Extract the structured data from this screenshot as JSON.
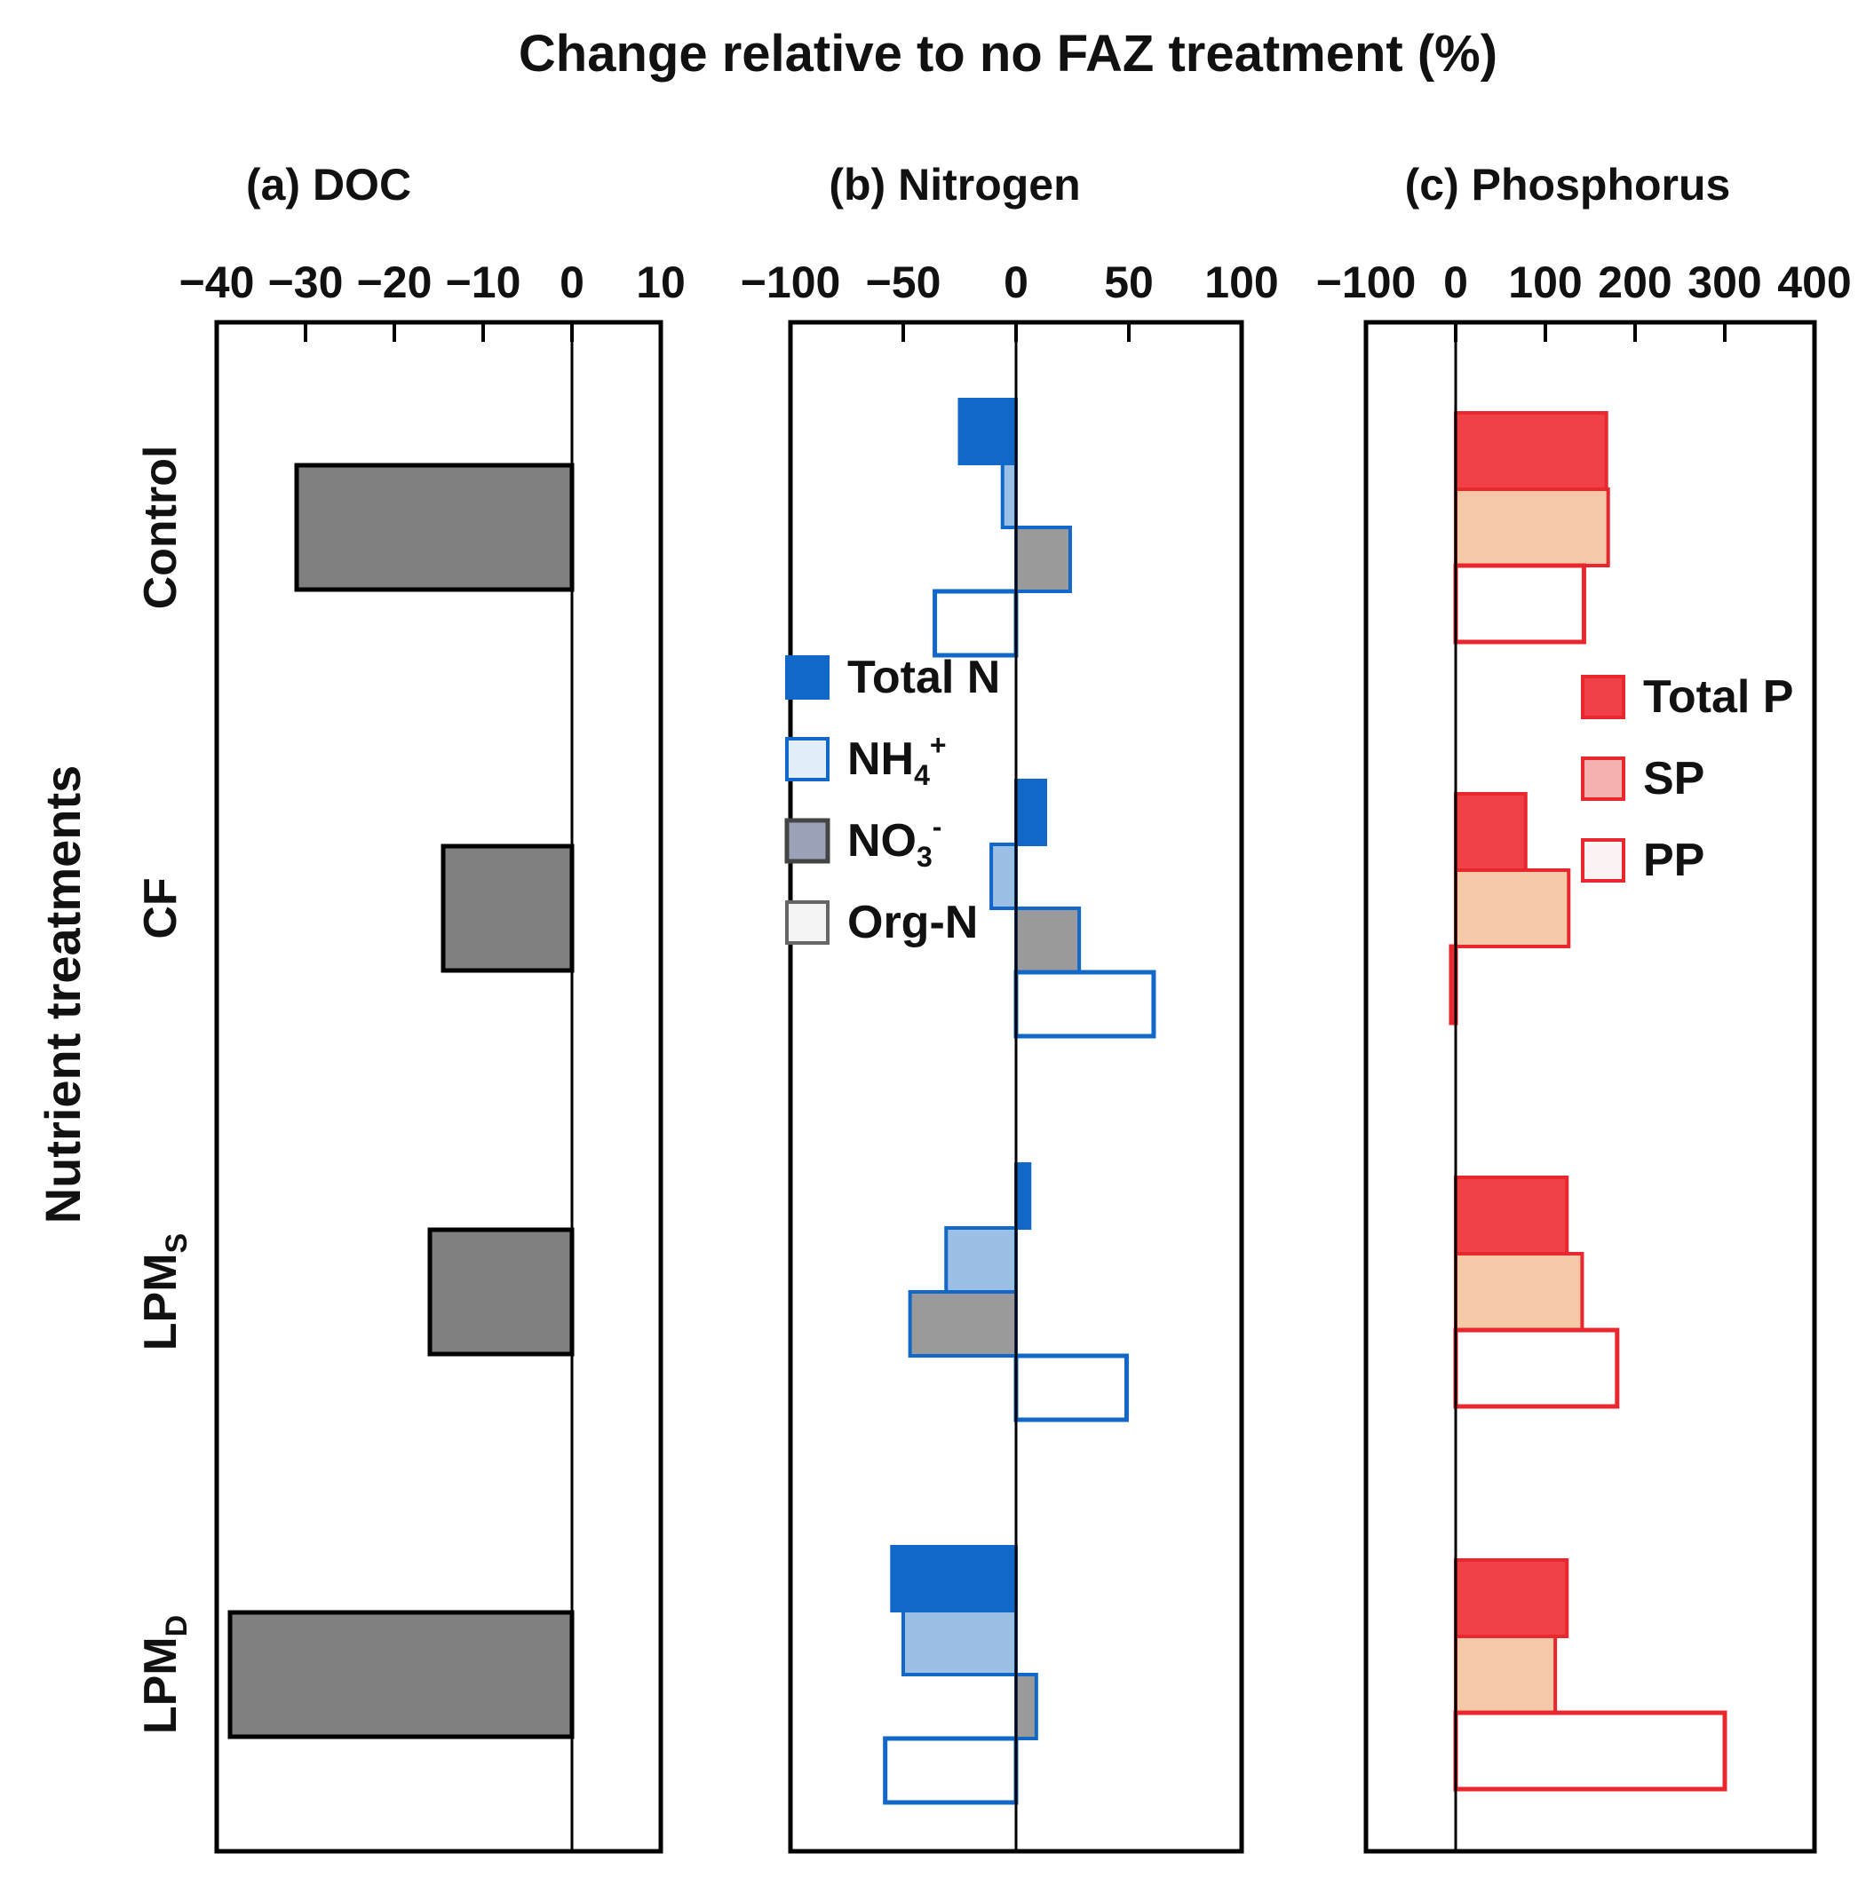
{
  "figure": {
    "main_title": "Change relative to no FAZ treatment (%)",
    "y_axis_title": "Nutrient treatments"
  },
  "colors": {
    "doc_fill": "#808080",
    "total_n": "#1168c9",
    "nh4": "#1168c9",
    "no3": "#9a9a9a",
    "org_n": "#1168c9",
    "total_p": "#f04048",
    "sp": "#f5c9a8",
    "pp": "#e8282e",
    "red_legend": "#e8282e"
  },
  "chart_data": [
    {
      "id": "doc",
      "type": "bar",
      "orientation": "horizontal",
      "title": "(a) DOC",
      "categories": [
        "Control",
        "CF",
        "LPMS",
        "LPMD"
      ],
      "category_labels": [
        {
          "main": "Control",
          "sub": ""
        },
        {
          "main": "CF",
          "sub": ""
        },
        {
          "main": "LPM",
          "sub": "S"
        },
        {
          "main": "LPM",
          "sub": "D"
        }
      ],
      "xlim": [
        -40,
        10
      ],
      "ticks": [
        -40,
        -30,
        -20,
        -10,
        0,
        10
      ],
      "tick_labels": [
        "−40",
        "−30",
        "−20",
        "−10",
        "0",
        "10"
      ],
      "series": [
        {
          "name": "DOC",
          "values": [
            -31,
            -14.5,
            -16,
            -38.5
          ]
        }
      ]
    },
    {
      "id": "nitrogen",
      "type": "bar",
      "orientation": "horizontal",
      "title": "(b) Nitrogen",
      "categories": [
        "Control",
        "CF",
        "LPMS",
        "LPMD"
      ],
      "xlim": [
        -100,
        100
      ],
      "ticks": [
        -100,
        -50,
        0,
        50,
        100
      ],
      "tick_labels": [
        "−100",
        "−50",
        "0",
        "50",
        "100"
      ],
      "legend": {
        "position": "middle-left"
      },
      "series": [
        {
          "name": "Total N",
          "values": [
            -25,
            13,
            6,
            -55
          ]
        },
        {
          "name": "NH4+",
          "label": "NH",
          "sub": "4",
          "sup": "+",
          "values": [
            -6,
            -11,
            -31,
            -50
          ]
        },
        {
          "name": "NO3-",
          "label": "NO",
          "sub": "3",
          "sup": "-",
          "values": [
            24,
            28,
            -47,
            9
          ]
        },
        {
          "name": "Org-N",
          "values": [
            -36,
            61,
            49,
            -58
          ]
        }
      ]
    },
    {
      "id": "phosphorus",
      "type": "bar",
      "orientation": "horizontal",
      "title": "(c) Phosphorus",
      "categories": [
        "Control",
        "CF",
        "LPMS",
        "LPMD"
      ],
      "xlim": [
        -100,
        400
      ],
      "ticks": [
        -100,
        0,
        100,
        200,
        300,
        400
      ],
      "tick_labels": [
        "−100",
        "0",
        "100",
        "200",
        "300",
        "400"
      ],
      "legend": {
        "position": "top-right"
      },
      "series": [
        {
          "name": "Total P",
          "values": [
            168,
            78,
            124,
            124
          ]
        },
        {
          "name": "SP",
          "values": [
            170,
            126,
            141,
            111
          ]
        },
        {
          "name": "PP",
          "values": [
            143,
            -5,
            180,
            300
          ]
        }
      ]
    }
  ]
}
